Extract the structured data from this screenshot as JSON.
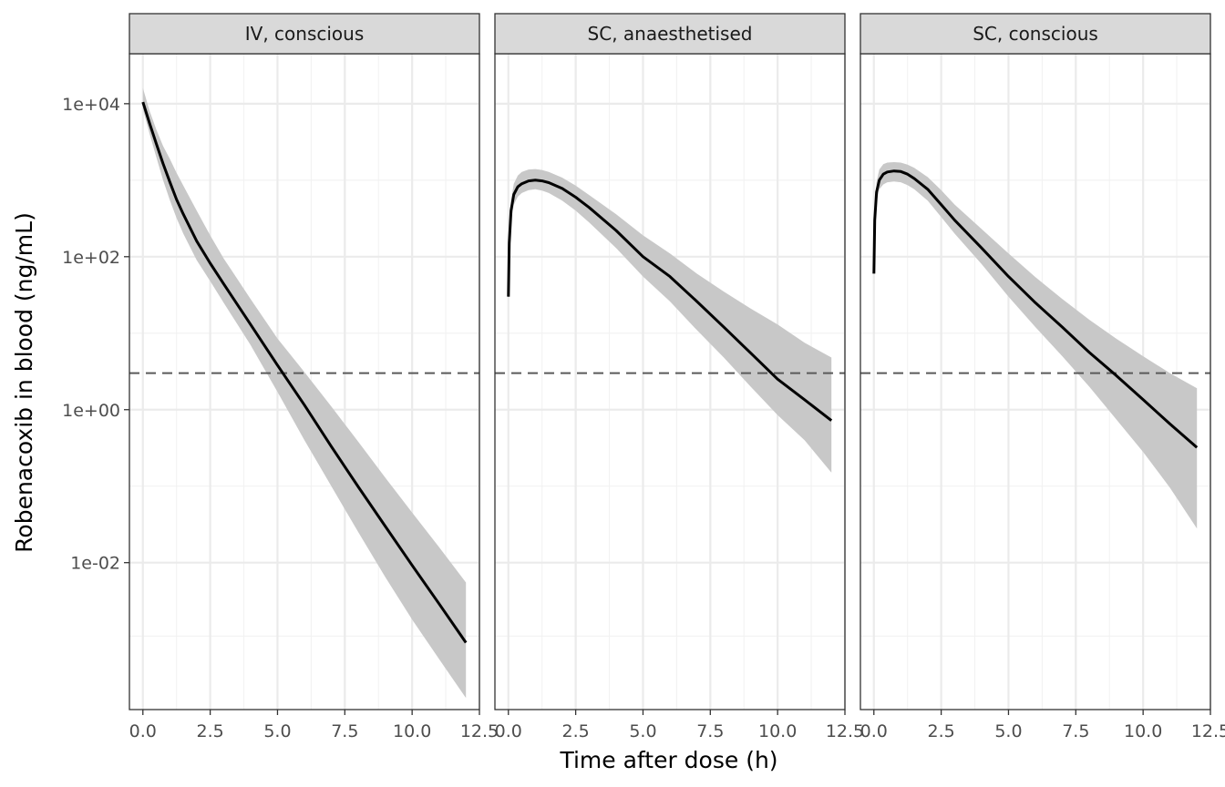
{
  "chart_data": {
    "type": "line",
    "xlabel": "Time after dose (h)",
    "ylabel": "Robenacoxib in blood (ng/mL)",
    "y_scale": "log10",
    "xlim": [
      -0.5,
      12.5
    ],
    "ylim": [
      0.00012,
      45000
    ],
    "x_ticks": [
      0,
      2.5,
      5,
      7.5,
      10,
      12.5
    ],
    "x_tick_labels": [
      "0.0",
      "2.5",
      "5.0",
      "7.5",
      "10.0",
      "12.5"
    ],
    "y_ticks": [
      0.01,
      1,
      100,
      10000
    ],
    "y_tick_labels": [
      "1e-02",
      "1e+00",
      "1e+02",
      "1e+04"
    ],
    "reference_line": {
      "y": 3,
      "style": "dashed",
      "color": "#5a5a5a"
    },
    "grid": true,
    "colors": {
      "line": "#000000",
      "ribbon": "#c8c8c8",
      "strip": "#d9d9d9"
    },
    "panels": [
      {
        "label": "IV, conscious",
        "x": [
          0,
          0.25,
          0.5,
          0.75,
          1,
          1.25,
          1.5,
          2,
          2.5,
          3,
          4,
          5,
          6,
          7,
          8,
          9,
          10,
          11,
          12
        ],
        "y": [
          10500,
          5500,
          3000,
          1650,
          950,
          560,
          360,
          160,
          82,
          44,
          13,
          3.8,
          1.15,
          0.33,
          0.098,
          0.03,
          0.0092,
          0.0029,
          0.0009
        ],
        "lower": [
          8500,
          4000,
          2000,
          1000,
          550,
          320,
          200,
          90,
          48,
          25,
          7,
          1.7,
          0.4,
          0.1,
          0.025,
          0.0065,
          0.0018,
          0.00055,
          0.00017
        ],
        "upper": [
          16000,
          8000,
          4600,
          2800,
          1900,
          1250,
          850,
          400,
          190,
          95,
          28,
          8.5,
          3.1,
          1.1,
          0.38,
          0.13,
          0.045,
          0.016,
          0.0055
        ]
      },
      {
        "label": "SC, anaesthetised",
        "x": [
          0,
          0.03,
          0.1,
          0.2,
          0.35,
          0.5,
          0.75,
          1,
          1.25,
          1.5,
          2,
          2.5,
          3,
          4,
          5,
          6,
          7,
          8,
          9,
          10,
          11,
          12
        ],
        "y": [
          30,
          150,
          400,
          650,
          820,
          900,
          980,
          1000,
          980,
          930,
          780,
          600,
          440,
          220,
          100,
          55,
          26,
          12,
          5.5,
          2.5,
          1.35,
          0.72
        ],
        "lower": [
          30,
          110,
          300,
          480,
          610,
          680,
          740,
          760,
          730,
          680,
          540,
          400,
          280,
          130,
          55,
          26,
          11,
          4.8,
          2.0,
          0.85,
          0.4,
          0.15
        ],
        "upper": [
          30,
          200,
          540,
          900,
          1150,
          1280,
          1380,
          1400,
          1360,
          1280,
          1080,
          850,
          640,
          360,
          190,
          110,
          60,
          35,
          21,
          13,
          7.5,
          4.8
        ]
      },
      {
        "label": "SC, conscious",
        "x": [
          0,
          0.03,
          0.1,
          0.2,
          0.35,
          0.5,
          0.75,
          1,
          1.25,
          1.5,
          2,
          2.5,
          3,
          4,
          5,
          6,
          7,
          8,
          9,
          10,
          11,
          12
        ],
        "y": [
          60,
          300,
          700,
          1000,
          1200,
          1280,
          1320,
          1300,
          1200,
          1050,
          760,
          480,
          300,
          130,
          55,
          25,
          12,
          5.6,
          2.8,
          1.35,
          0.65,
          0.32
        ],
        "lower": [
          60,
          220,
          520,
          760,
          880,
          940,
          960,
          940,
          860,
          760,
          540,
          330,
          200,
          80,
          30,
          12,
          5,
          2.0,
          0.75,
          0.28,
          0.095,
          0.028
        ],
        "upper": [
          60,
          400,
          950,
          1380,
          1620,
          1700,
          1720,
          1700,
          1600,
          1450,
          1100,
          740,
          480,
          230,
          110,
          54,
          28,
          15,
          8.5,
          5.0,
          3.0,
          1.9
        ]
      }
    ]
  }
}
